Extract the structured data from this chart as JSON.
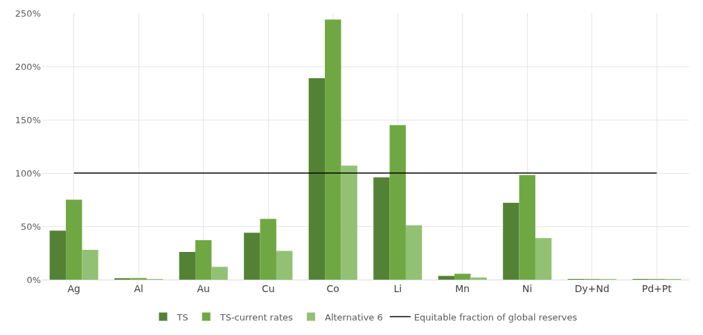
{
  "chart_data": {
    "type": "bar",
    "categories": [
      "Ag",
      "Al",
      "Au",
      "Cu",
      "Co",
      "Li",
      "Mn",
      "Ni",
      "Dy+Nd",
      "Pd+Pt"
    ],
    "series": [
      {
        "name": "TS",
        "color": "#548235",
        "values": [
          46,
          1,
          26,
          44,
          189,
          96,
          3.5,
          72,
          0.3,
          0.3
        ]
      },
      {
        "name": "TS-current rates",
        "color": "#6fa843",
        "values": [
          75,
          1.5,
          37,
          57,
          244,
          145,
          5.5,
          98,
          0.3,
          0.3
        ]
      },
      {
        "name": "Alternative 6",
        "color": "#92c173",
        "values": [
          28,
          0.5,
          12,
          27,
          107,
          51,
          2,
          39,
          0.3,
          0.3
        ]
      },
      {
        "name": "Equitable fraction of global reserves",
        "type": "line",
        "color": "#000000",
        "marker": "none",
        "values": [
          100,
          100,
          100,
          100,
          100,
          100,
          100,
          100,
          100,
          100
        ]
      }
    ],
    "ylim": [
      0,
      250
    ],
    "yticks": [
      {
        "value": 0,
        "label": "0%"
      },
      {
        "value": 50,
        "label": "50%"
      },
      {
        "value": 100,
        "label": "100%"
      },
      {
        "value": 150,
        "label": "150%"
      },
      {
        "value": 200,
        "label": "200%"
      },
      {
        "value": 250,
        "label": "250%"
      }
    ],
    "grid": true,
    "legend": "bottom"
  }
}
